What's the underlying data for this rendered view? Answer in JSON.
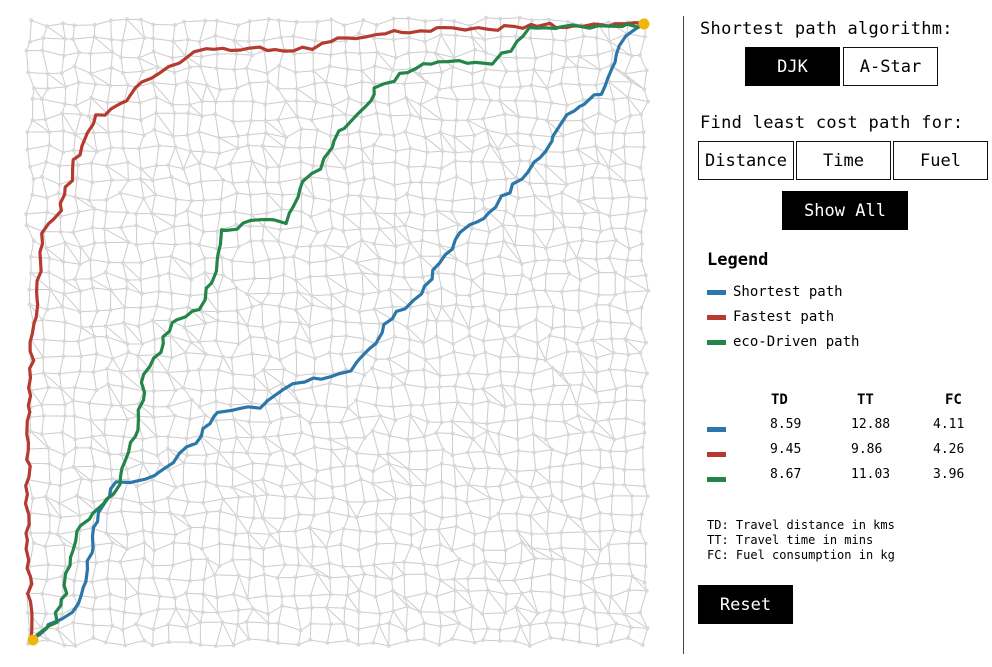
{
  "algorithm": {
    "title": "Shortest path algorithm:",
    "options": [
      "DJK",
      "A-Star"
    ],
    "selected": "DJK"
  },
  "cost": {
    "title": "Find least cost path for:",
    "options": [
      "Distance",
      "Time",
      "Fuel"
    ],
    "show_all_label": "Show All"
  },
  "legend": {
    "title": "Legend",
    "items": [
      {
        "label": "Shortest path",
        "color": "#2b77a9"
      },
      {
        "label": "Fastest path",
        "color": "#b53a2f"
      },
      {
        "label": "eco-Driven path",
        "color": "#238548"
      }
    ]
  },
  "stats": {
    "headers": [
      "TD",
      "TT",
      "FC"
    ],
    "rows": [
      {
        "color": "#2b77a9",
        "td": "8.59",
        "tt": "12.88",
        "fc": "4.11"
      },
      {
        "color": "#b53a2f",
        "td": "9.45",
        "tt": "9.86",
        "fc": "4.26"
      },
      {
        "color": "#238548",
        "td": "8.67",
        "tt": "11.03",
        "fc": "3.96"
      }
    ]
  },
  "notes": [
    "TD: Travel distance in kms",
    "TT: Travel time in mins",
    "FC: Fuel consumption in kg"
  ],
  "reset_label": "Reset",
  "map": {
    "grid_size": 40,
    "node_color": "#d9d9d9",
    "edge_color": "#cccccc",
    "endpoint_color": "#f2b50a",
    "paths": [
      {
        "name": "shortest",
        "color": "#2b77a9"
      },
      {
        "name": "fastest",
        "color": "#b53a2f"
      },
      {
        "name": "eco",
        "color": "#238548"
      }
    ]
  }
}
